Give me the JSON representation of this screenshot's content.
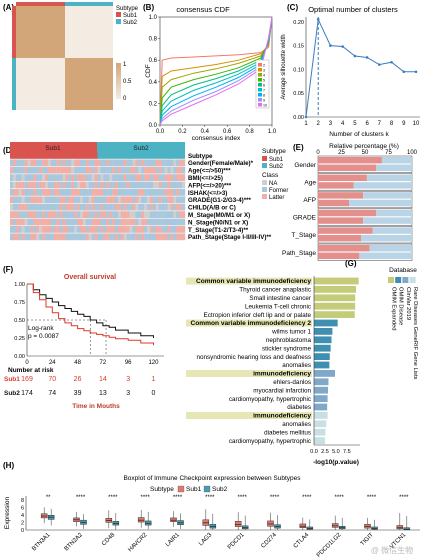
{
  "panels": {
    "A": {
      "label": "(A)",
      "legend": {
        "title": "Subtype",
        "items": [
          {
            "name": "Sub1",
            "color": "#d9534f"
          },
          {
            "name": "Sub2",
            "color": "#4bb3c4"
          }
        ]
      },
      "scale": {
        "ticks": [
          "1",
          "0.5",
          "0"
        ],
        "high_color": "#d2a679",
        "low_color": "#f4ece2"
      }
    },
    "B": {
      "label": "(B)",
      "title": "consensus CDF",
      "xlabel": "consensus index",
      "ylabel": "CDF",
      "x_ticks": [
        "0.0",
        "0.2",
        "0.4",
        "0.6",
        "0.8",
        "1.0"
      ],
      "y_ticks": [
        "0.0",
        "0.2",
        "0.4",
        "0.6",
        "0.8",
        "1.0"
      ],
      "legend": [
        "2",
        "3",
        "4",
        "5",
        "6",
        "7",
        "8",
        "9",
        "10"
      ],
      "colors": [
        "#f8766d",
        "#d89000",
        "#a3a500",
        "#39b600",
        "#00bf7d",
        "#00bfc4",
        "#00b0f6",
        "#9590ff",
        "#e76bf3"
      ]
    },
    "C": {
      "label": "(C)",
      "title": "Optimal number of clusters",
      "xlabel": "Number of clusters k",
      "ylabel": "Average silhouette width",
      "x_ticks": [
        "1",
        "2",
        "3",
        "4",
        "5",
        "6",
        "7",
        "8",
        "9",
        "10"
      ],
      "y_ticks": [
        "0.00",
        "0.05",
        "0.10",
        "0.15",
        "0.20"
      ],
      "color": "#3a7cc1"
    },
    "D": {
      "label": "(D)",
      "group_labels": [
        "Sub1",
        "Sub2"
      ],
      "rows": [
        "Subtype",
        "Gender(Female/Male)*",
        "Age(<=/>50)***",
        "BMI(<=/>25)",
        "AFP(<=/>20)***",
        "ISHAK(<=/>3)",
        "GRADE(G1-2/G3-4)***",
        "CHILD(A/B or C)",
        "M_Stage(M0/M1 or X)",
        "N_Stage(N0/N1 or X)",
        "T_Stage(T1-2/T3-4)**",
        "Path_Stage(Stage I-II/III-IV)**"
      ],
      "legend": {
        "subtype_title": "Subtype",
        "subtype_items": [
          {
            "name": "Sub1",
            "color": "#d9534f"
          },
          {
            "name": "Sub2",
            "color": "#4bb3c4"
          }
        ],
        "class_title": "Class",
        "class_items": [
          {
            "name": "NA",
            "color": "#cfcfcf"
          },
          {
            "name": "Former",
            "color": "#aac8dd"
          },
          {
            "name": "Latter",
            "color": "#f0b0a8"
          }
        ]
      }
    },
    "E": {
      "label": "(E)",
      "title": "Relative percentage (%)",
      "x_ticks": [
        "0",
        "25",
        "50",
        "75",
        "100"
      ],
      "categories": [
        "Gender",
        "Age",
        "AFP",
        "GRADE",
        "T_Stage",
        "Path_Stage"
      ],
      "colors": {
        "latter": "#e48f8b",
        "former": "#b9d4e6"
      }
    },
    "F": {
      "label": "(F)",
      "title": "Overall survival",
      "stat_line1": "Log-rank",
      "stat_line2": "p = 0.0087",
      "y_ticks": [
        "1.00",
        "0.75",
        "0.50",
        "0.25",
        "0.00"
      ],
      "x_ticks": [
        "0",
        "24",
        "48",
        "72",
        "96",
        "120"
      ],
      "risk_title": "Number at risk",
      "risk_rows": [
        {
          "name": "Sub1",
          "values": [
            "169",
            "70",
            "26",
            "14",
            "3",
            "1"
          ],
          "color": "#d93a2b"
        },
        {
          "name": "Sub2",
          "values": [
            "174",
            "74",
            "39",
            "13",
            "3",
            "0"
          ],
          "color": "#111111"
        }
      ],
      "xlabel": "Time in Mouths"
    },
    "G": {
      "label": "(G)",
      "xlabel": "-log10(p.value)",
      "x_ticks": [
        "0.0",
        "2.5",
        "5.0",
        "7.5"
      ],
      "terms": [
        "Common variable immunodeficiency",
        "Thyroid cancer anaplastic",
        "Small intestine cancer",
        "Leukemia T-cell chronic",
        "Ectropion inferior cleft lip and or palate",
        "Common variable immunodeficiency 2",
        "wilms tumor 1",
        "nephroblastoma",
        "stickler syndrome",
        "nonsyndromic hearing loss and deafness",
        "anomalies",
        "immunodeficiency",
        "ehlers-danlos",
        "myocardial infarction",
        "cardiomyopathy, hypertrophic",
        "diabetes",
        "immunodeficiency",
        "anomalies",
        "diabetes mellitus",
        "cardiomyopathy, hypertrophic"
      ],
      "legend": {
        "title": "Database",
        "items": [
          {
            "name": "OMIM Expanded",
            "color": "#c4cc7a"
          },
          {
            "name": "OMIM Disease",
            "color": "#3e8fb0"
          },
          {
            "name": "ClinVar 2019",
            "color": "#7fa8c9"
          },
          {
            "name": "Rare Diseases GeneRIF Gene Lists",
            "color": "#c8e0e4"
          }
        ]
      }
    },
    "H": {
      "label": "(H)",
      "title": "Boxplot of Immune Checkpoint expression between Subtypes",
      "legend_title": "Subtype",
      "legend": [
        {
          "name": "Sub1",
          "color": "#e0796b"
        },
        {
          "name": "Sub2",
          "color": "#4a9ab0"
        }
      ],
      "ylabel": "Expression",
      "y_ticks": [
        "0",
        "2",
        "4",
        "6",
        "8"
      ],
      "genes": [
        "BTN3A1",
        "BTN2A2",
        "CD48",
        "HAVCR2",
        "LAIR1",
        "LAG3",
        "PDCD1",
        "CD274",
        "CTLA4",
        "PDCD1LG2",
        "TIGIT",
        "VTCN1"
      ],
      "significance": [
        "**",
        "****",
        "****",
        "****",
        "****",
        "****",
        "****",
        "****",
        "****",
        "****",
        "****",
        "****"
      ],
      "watermark": "@ 微信生物"
    }
  },
  "chart_data": [
    {
      "panel": "B",
      "type": "line",
      "title": "consensus CDF",
      "xlabel": "consensus index",
      "ylabel": "CDF",
      "xlim": [
        0,
        1
      ],
      "ylim": [
        0,
        1
      ],
      "series": [
        {
          "name": "2",
          "x": [
            0,
            0.02,
            0.1,
            0.3,
            0.5,
            0.7,
            0.9,
            0.97,
            1.0
          ],
          "y": [
            0,
            0.6,
            0.62,
            0.63,
            0.64,
            0.65,
            0.67,
            0.72,
            1.0
          ]
        },
        {
          "name": "3",
          "x": [
            0,
            0.02,
            0.1,
            0.3,
            0.5,
            0.7,
            0.9,
            0.97,
            1.0
          ],
          "y": [
            0,
            0.45,
            0.5,
            0.53,
            0.56,
            0.6,
            0.66,
            0.74,
            1.0
          ]
        },
        {
          "name": "4",
          "x": [
            0,
            0.02,
            0.1,
            0.3,
            0.5,
            0.7,
            0.9,
            0.97,
            1.0
          ],
          "y": [
            0,
            0.35,
            0.42,
            0.48,
            0.52,
            0.57,
            0.64,
            0.75,
            1.0
          ]
        },
        {
          "name": "5",
          "x": [
            0,
            0.02,
            0.1,
            0.3,
            0.5,
            0.7,
            0.9,
            0.97,
            1.0
          ],
          "y": [
            0,
            0.25,
            0.35,
            0.42,
            0.47,
            0.53,
            0.62,
            0.76,
            1.0
          ]
        },
        {
          "name": "6",
          "x": [
            0,
            0.02,
            0.1,
            0.3,
            0.5,
            0.7,
            0.9,
            0.97,
            1.0
          ],
          "y": [
            0,
            0.18,
            0.28,
            0.37,
            0.43,
            0.5,
            0.6,
            0.77,
            1.0
          ]
        },
        {
          "name": "7",
          "x": [
            0,
            0.02,
            0.1,
            0.3,
            0.5,
            0.7,
            0.9,
            0.97,
            1.0
          ],
          "y": [
            0,
            0.13,
            0.22,
            0.32,
            0.39,
            0.47,
            0.58,
            0.78,
            1.0
          ]
        },
        {
          "name": "8",
          "x": [
            0,
            0.02,
            0.1,
            0.3,
            0.5,
            0.7,
            0.9,
            0.97,
            1.0
          ],
          "y": [
            0,
            0.09,
            0.17,
            0.27,
            0.35,
            0.44,
            0.56,
            0.79,
            1.0
          ]
        },
        {
          "name": "9",
          "x": [
            0,
            0.02,
            0.1,
            0.3,
            0.5,
            0.7,
            0.9,
            0.97,
            1.0
          ],
          "y": [
            0,
            0.06,
            0.13,
            0.23,
            0.31,
            0.41,
            0.54,
            0.8,
            1.0
          ]
        },
        {
          "name": "10",
          "x": [
            0,
            0.02,
            0.1,
            0.3,
            0.5,
            0.7,
            0.9,
            0.97,
            1.0
          ],
          "y": [
            0,
            0.04,
            0.1,
            0.19,
            0.28,
            0.38,
            0.52,
            0.81,
            1.0
          ]
        }
      ]
    },
    {
      "panel": "C",
      "type": "line",
      "title": "Optimal number of clusters",
      "xlabel": "Number of clusters k",
      "ylabel": "Average silhouette width",
      "x": [
        1,
        2,
        3,
        4,
        5,
        6,
        7,
        8,
        9,
        10
      ],
      "y": [
        0,
        0.205,
        0.15,
        0.148,
        0.128,
        0.125,
        0.11,
        0.115,
        0.095,
        0.095
      ],
      "vline": 2,
      "ylim": [
        0,
        0.21
      ],
      "xlim": [
        1,
        10
      ]
    },
    {
      "panel": "E",
      "type": "bar",
      "title": "Relative percentage (%)",
      "xlim": [
        0,
        100
      ],
      "categories": [
        "Gender",
        "Age",
        "AFP",
        "GRADE",
        "T_Stage",
        "Path_Stage"
      ],
      "series": [
        {
          "name": "Latter",
          "subgroups": [
            "Sub1",
            "Sub2"
          ],
          "values": [
            [
              68,
              62
            ],
            [
              52,
              38
            ],
            [
              48,
              33
            ],
            [
              62,
              48
            ],
            [
              58,
              46
            ],
            [
              55,
              44
            ]
          ]
        }
      ]
    },
    {
      "panel": "F",
      "type": "line",
      "title": "Overall survival",
      "xlim": [
        0,
        120
      ],
      "ylim": [
        0,
        1
      ],
      "series": [
        {
          "name": "Sub2",
          "x": [
            0,
            6,
            12,
            18,
            24,
            30,
            36,
            42,
            48,
            54,
            60,
            66,
            72,
            78,
            84,
            96,
            108,
            120
          ],
          "y": [
            1.0,
            0.92,
            0.85,
            0.8,
            0.75,
            0.7,
            0.66,
            0.62,
            0.58,
            0.55,
            0.5,
            0.46,
            0.42,
            0.4,
            0.36,
            0.32,
            0.28,
            0.25
          ]
        },
        {
          "name": "Sub1",
          "x": [
            0,
            6,
            12,
            18,
            24,
            30,
            36,
            42,
            48,
            54,
            60,
            66,
            72,
            78,
            84,
            96,
            108,
            120
          ],
          "y": [
            1.0,
            0.88,
            0.78,
            0.68,
            0.6,
            0.52,
            0.46,
            0.42,
            0.38,
            0.35,
            0.32,
            0.3,
            0.28,
            0.26,
            0.24,
            0.22,
            0.18,
            0.15
          ]
        }
      ],
      "median_lines": [
        60,
        75
      ]
    },
    {
      "panel": "G",
      "type": "bar",
      "xlabel": "-log10(p.value)",
      "xlim": [
        0,
        10
      ],
      "categories": [
        "Common variable immunodeficiency",
        "Thyroid cancer anaplastic",
        "Small intestine cancer",
        "Leukemia T-cell chronic",
        "Ectropion inferior cleft lip and or palate",
        "Common variable immunodeficiency 2",
        "wilms tumor 1",
        "nephroblastoma",
        "stickler syndrome",
        "nonsyndromic hearing loss and deafness",
        "anomalies",
        "immunodeficiency",
        "ehlers-danlos",
        "myocardial infarction",
        "cardiomyopathy, hypertrophic",
        "diabetes",
        "immunodeficiency",
        "anomalies",
        "diabetes mellitus",
        "cardiomyopathy, hypertrophic"
      ],
      "values": [
        10.2,
        9.6,
        9.4,
        9.4,
        9.3,
        5.4,
        4.2,
        4.0,
        3.8,
        3.6,
        3.5,
        4.8,
        3.3,
        3.2,
        3.1,
        3.0,
        3.1,
        2.8,
        2.6,
        2.5
      ],
      "groups": [
        0,
        0,
        0,
        0,
        0,
        1,
        1,
        1,
        1,
        1,
        1,
        2,
        2,
        2,
        2,
        2,
        3,
        3,
        3,
        3
      ]
    },
    {
      "panel": "H",
      "type": "box",
      "title": "Boxplot of Immune Checkpoint expression between Subtypes",
      "ylabel": "Expression",
      "ylim": [
        0,
        9
      ],
      "categories": [
        "BTN3A1",
        "BTN2A2",
        "CD48",
        "HAVCR2",
        "LAIR1",
        "LAG3",
        "PDCD1",
        "CD274",
        "CTLA4",
        "PDCD1LG2",
        "TIGIT",
        "VTCN1"
      ],
      "series": [
        {
          "name": "Sub1",
          "q1": [
            3.2,
            2.2,
            2.0,
            2.1,
            2.2,
            1.2,
            0.9,
            1.0,
            0.6,
            0.7,
            0.5,
            0.3
          ],
          "median": [
            3.7,
            2.7,
            2.5,
            2.6,
            2.6,
            1.9,
            1.5,
            1.6,
            1.0,
            1.1,
            0.9,
            0.6
          ],
          "q3": [
            4.3,
            3.2,
            3.1,
            3.3,
            3.2,
            2.7,
            2.3,
            2.4,
            1.6,
            1.7,
            1.5,
            1.2
          ],
          "min": [
            1.8,
            0.9,
            0.5,
            0.6,
            0.8,
            0.1,
            0.0,
            0.1,
            0.0,
            0.0,
            0.0,
            0.0
          ],
          "max": [
            6.0,
            4.8,
            5.2,
            5.3,
            5.0,
            5.5,
            4.7,
            4.6,
            3.3,
            3.8,
            3.2,
            4.5
          ]
        },
        {
          "name": "Sub2",
          "q1": [
            2.8,
            1.5,
            1.3,
            1.3,
            1.4,
            0.5,
            0.3,
            0.5,
            0.2,
            0.3,
            0.2,
            0.1
          ],
          "median": [
            3.4,
            2.0,
            1.7,
            1.8,
            1.9,
            0.9,
            0.6,
            0.9,
            0.4,
            0.6,
            0.4,
            0.2
          ],
          "q3": [
            3.9,
            2.6,
            2.3,
            2.4,
            2.5,
            1.5,
            1.1,
            1.4,
            0.8,
            1.0,
            0.8,
            0.6
          ],
          "min": [
            1.2,
            0.3,
            0.1,
            0.2,
            0.3,
            0.0,
            0.0,
            0.0,
            0.0,
            0.0,
            0.0,
            0.0
          ],
          "max": [
            5.6,
            4.2,
            4.5,
            4.8,
            4.4,
            4.3,
            3.8,
            3.9,
            2.8,
            3.2,
            2.7,
            3.7
          ]
        }
      ]
    }
  ]
}
